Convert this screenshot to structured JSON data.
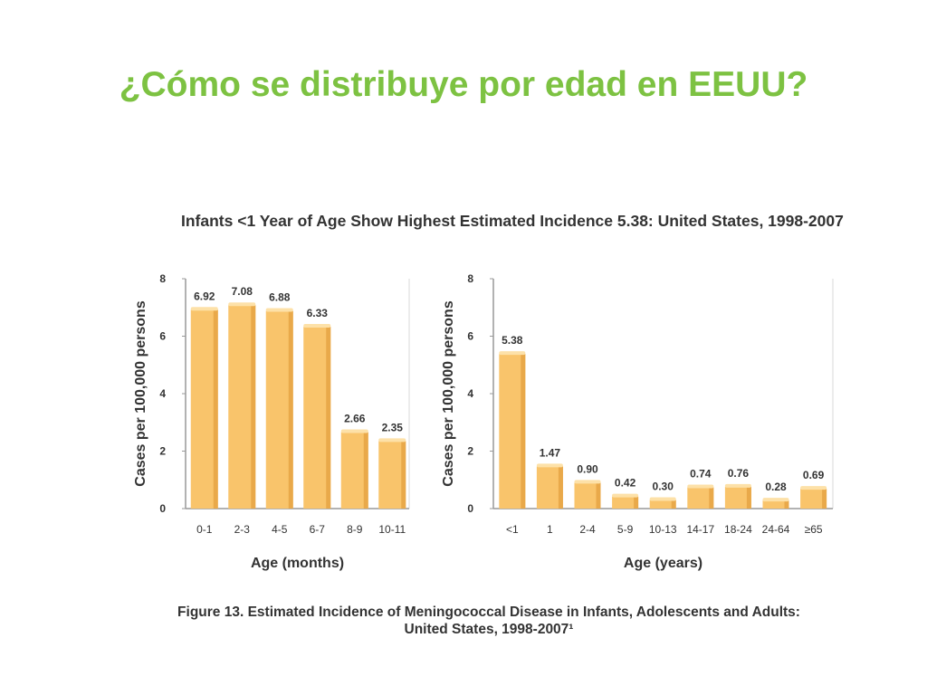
{
  "slide": {
    "title": "¿Cómo se distribuye por edad en EEUU?"
  },
  "figure": {
    "title": "Infants <1 Year of Age Show Highest Estimated Incidence 5.38: United States, 1998-2007",
    "caption_line1": "Figure 13. Estimated Incidence of Meningococcal Disease in Infants, Adolescents and Adults:",
    "caption_line2": "United States, 1998-2007¹"
  },
  "colors": {
    "title": "#7dc242",
    "bar": "#f9c46b",
    "bar_dark": "#e9a94a",
    "bar_top": "#fde1a8",
    "axis": "#999999",
    "grid_frame": "#d9d9d9"
  },
  "chart_data": [
    {
      "type": "bar",
      "categories": [
        "0-1",
        "2-3",
        "4-5",
        "6-7",
        "8-9",
        "10-11"
      ],
      "values": [
        6.92,
        7.08,
        6.88,
        6.33,
        2.66,
        2.35
      ],
      "data_labels": [
        "6.92",
        "7.08",
        "6.88",
        "6.33",
        "2.66",
        "2.35"
      ],
      "xlabel": "Age (months)",
      "ylabel": "Cases per 100,000 persons",
      "yticks": [
        0,
        2,
        4,
        6,
        8
      ],
      "ylim": [
        0,
        8
      ],
      "grid": false
    },
    {
      "type": "bar",
      "categories": [
        "<1",
        "1",
        "2-4",
        "5-9",
        "10-13",
        "14-17",
        "18-24",
        "24-64",
        "≥65"
      ],
      "values": [
        5.38,
        1.47,
        0.9,
        0.42,
        0.3,
        0.74,
        0.76,
        0.28,
        0.69
      ],
      "data_labels": [
        "5.38",
        "1.47",
        "0.90",
        "0.42",
        "0.30",
        "0.74",
        "0.76",
        "0.28",
        "0.69"
      ],
      "xlabel": "Age (years)",
      "ylabel": "Cases per 100,000 persons",
      "yticks": [
        0,
        2,
        4,
        6,
        8
      ],
      "ylim": [
        0,
        8
      ],
      "grid": false
    }
  ]
}
